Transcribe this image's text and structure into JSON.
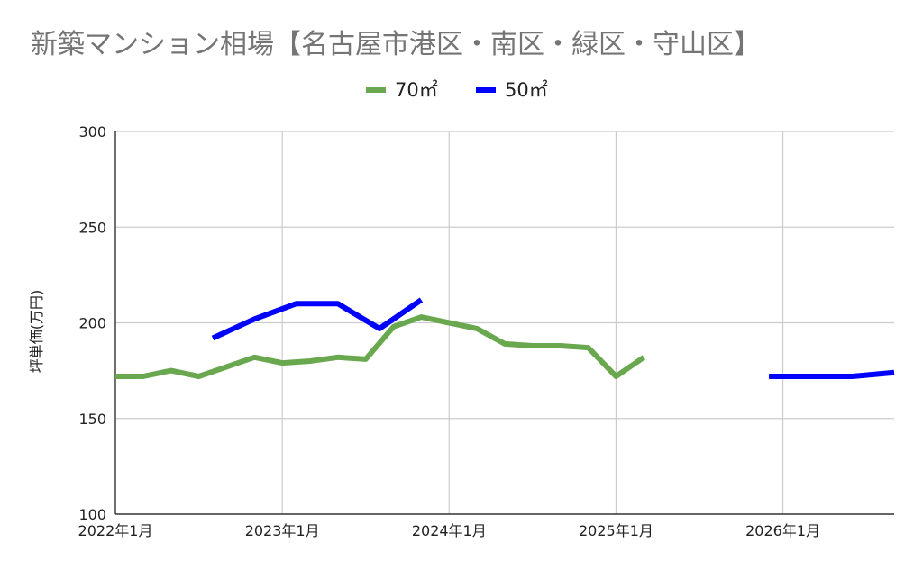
{
  "chart_data": {
    "type": "line",
    "title": "新築マンション相場【名古屋市港区・南区・緑区・守山区】",
    "ylabel": "坪単価(万円)",
    "xlabel": "",
    "ylim": [
      100,
      300
    ],
    "yticks": [
      "100",
      "150",
      "200",
      "250",
      "300"
    ],
    "xlim": [
      "2022-01",
      "2026-09"
    ],
    "xticks": [
      {
        "date": "2022-01",
        "label": "2022年1月"
      },
      {
        "date": "2023-01",
        "label": "2023年1月"
      },
      {
        "date": "2024-01",
        "label": "2024年1月"
      },
      {
        "date": "2025-01",
        "label": "2025年1月"
      },
      {
        "date": "2026-01",
        "label": "2026年1月"
      }
    ],
    "grid": true,
    "legend": "top",
    "series": [
      {
        "name": "70㎡",
        "color": "#6aa84f",
        "points": [
          [
            "2022-01",
            172
          ],
          [
            "2022-03",
            172
          ],
          [
            "2022-05",
            175
          ],
          [
            "2022-07",
            172
          ],
          [
            "2022-09",
            177
          ],
          [
            "2022-11",
            182
          ],
          [
            "2023-01",
            179
          ],
          [
            "2023-03",
            180
          ],
          [
            "2023-05",
            182
          ],
          [
            "2023-07",
            181
          ],
          [
            "2023-09",
            198
          ],
          [
            "2023-11",
            203
          ],
          [
            "2024-01",
            200
          ],
          [
            "2024-03",
            197
          ],
          [
            "2024-05",
            189
          ],
          [
            "2024-07",
            188
          ],
          [
            "2024-09",
            188
          ],
          [
            "2024-11",
            187
          ],
          [
            "2025-01",
            172
          ],
          [
            "2025-03",
            182
          ]
        ]
      },
      {
        "name": "50㎡",
        "color": "#0000ff",
        "points": [
          [
            "2022-08",
            192
          ],
          [
            "2022-11",
            202
          ],
          [
            "2023-02",
            210
          ],
          [
            "2023-05",
            210
          ],
          [
            "2023-08",
            197
          ],
          [
            "2023-11",
            212
          ]
        ]
      },
      {
        "name": "50㎡",
        "color": "#0000ff",
        "points": [
          [
            "2025-12",
            172
          ],
          [
            "2026-03",
            172
          ],
          [
            "2026-06",
            172
          ],
          [
            "2026-09",
            174
          ]
        ]
      }
    ]
  }
}
